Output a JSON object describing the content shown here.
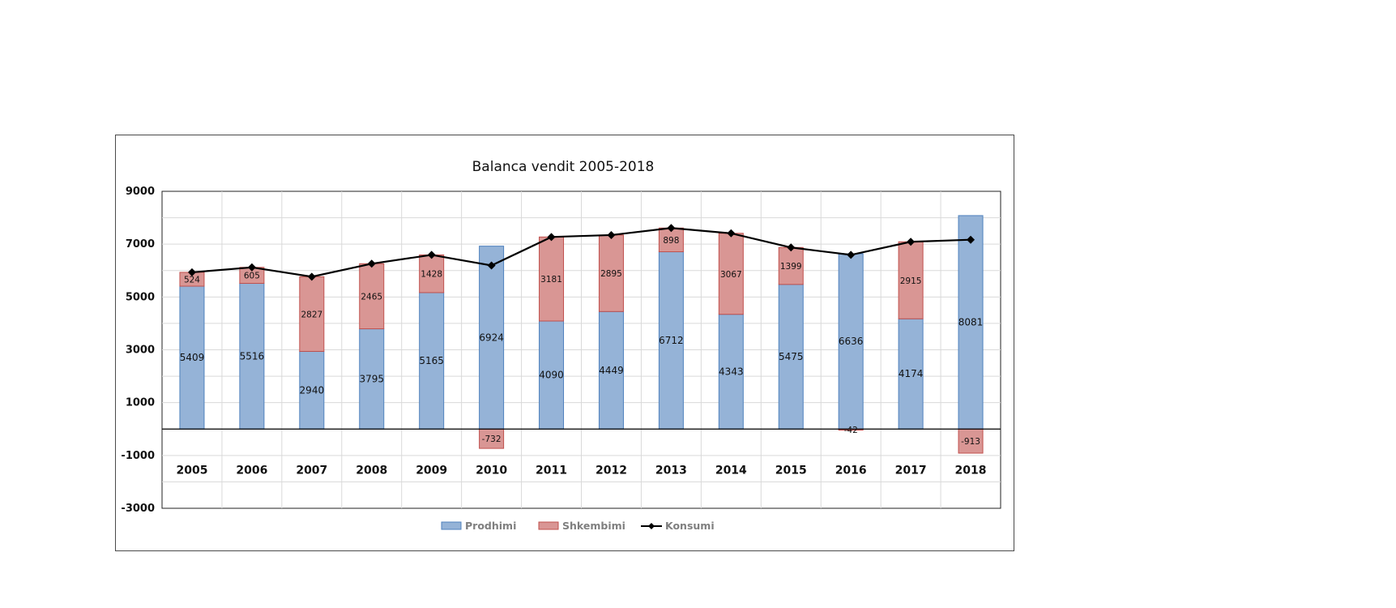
{
  "chart_data": {
    "type": "bar",
    "title": "Balanca vendit 2005-2018",
    "categories": [
      "2005",
      "2006",
      "2007",
      "2008",
      "2009",
      "2010",
      "2011",
      "2012",
      "2013",
      "2014",
      "2015",
      "2016",
      "2017",
      "2018"
    ],
    "ylim": [
      -3000,
      9000
    ],
    "yticks": [
      9000,
      7000,
      5000,
      3000,
      1000,
      -1000,
      -3000
    ],
    "ytick_labels": [
      "9000",
      "7000",
      "5000",
      "3000",
      "1000",
      "-1000",
      "-3000"
    ],
    "grid": true,
    "legend_position": "bottom",
    "series": [
      {
        "name": "Prodhimi",
        "kind": "stacked-bar",
        "color": "#95b3d7",
        "border": "#4f81bd",
        "values": [
          5409,
          5516,
          2940,
          3795,
          5165,
          6924,
          4090,
          4449,
          6712,
          4343,
          5475,
          6636,
          4174,
          8081
        ]
      },
      {
        "name": "Shkembimi",
        "kind": "stacked-bar",
        "color": "#d99694",
        "border": "#c0504d",
        "values": [
          524,
          605,
          2827,
          2465,
          1428,
          -732,
          3181,
          2895,
          898,
          3067,
          1399,
          -42,
          2915,
          -913
        ]
      },
      {
        "name": "Konsumi",
        "kind": "line",
        "color": "#000000",
        "values": [
          5933,
          6121,
          5767,
          6260,
          6593,
          6192,
          7271,
          7344,
          7610,
          7410,
          6874,
          6594,
          7089,
          7168
        ]
      }
    ]
  }
}
